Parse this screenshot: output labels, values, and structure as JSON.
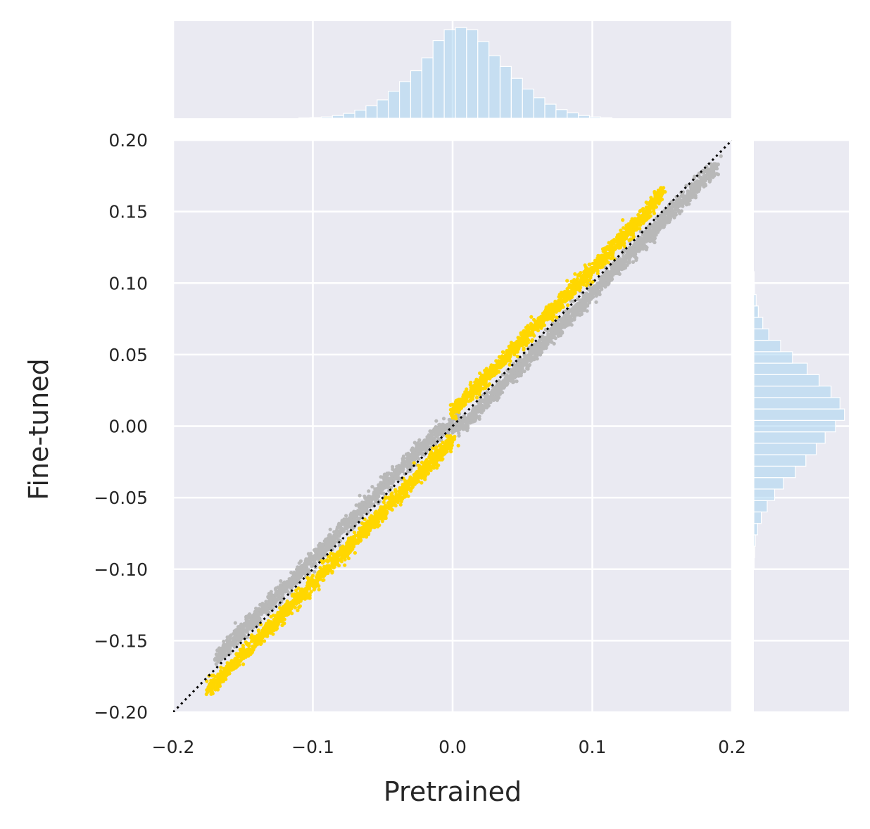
{
  "chart_data": {
    "type": "scatter",
    "subtype": "jointplot",
    "title": "",
    "xlabel": "Pretrained",
    "ylabel": "Fine-tuned",
    "xlim": [
      -0.2,
      0.2
    ],
    "ylim": [
      -0.2,
      0.2
    ],
    "x_ticks": [
      "−0.2",
      "−0.1",
      "0.0",
      "0.1",
      "0.2"
    ],
    "x_tick_values": [
      -0.2,
      -0.1,
      0.0,
      0.1,
      0.2
    ],
    "y_ticks": [
      "−0.20",
      "−0.15",
      "−0.10",
      "−0.05",
      "0.00",
      "0.05",
      "0.10",
      "0.15",
      "0.20"
    ],
    "y_tick_values": [
      -0.2,
      -0.15,
      -0.1,
      -0.05,
      0.0,
      0.05,
      0.1,
      0.15,
      0.2
    ],
    "grid": true,
    "reference_line": {
      "style": "dotted",
      "color": "#000000",
      "from": [
        -0.2,
        -0.2
      ],
      "to": [
        0.2,
        0.2
      ]
    },
    "series": [
      {
        "color": "#b8b8b8",
        "relation": "y ≈ x − 0.007 for x>0, y ≈ x + 0.007 for x<0",
        "points": [
          [
            -0.17,
            -0.163
          ],
          [
            -0.16,
            -0.153
          ],
          [
            -0.15,
            -0.143
          ],
          [
            -0.14,
            -0.133
          ],
          [
            -0.13,
            -0.123
          ],
          [
            -0.12,
            -0.113
          ],
          [
            -0.11,
            -0.103
          ],
          [
            -0.1,
            -0.093
          ],
          [
            -0.09,
            -0.083
          ],
          [
            -0.08,
            -0.073
          ],
          [
            -0.07,
            -0.063
          ],
          [
            -0.06,
            -0.053
          ],
          [
            -0.05,
            -0.043
          ],
          [
            -0.04,
            -0.033
          ],
          [
            -0.03,
            -0.023
          ],
          [
            -0.02,
            -0.013
          ],
          [
            -0.01,
            -0.003
          ],
          [
            0.0,
            0.0
          ],
          [
            0.01,
            0.003
          ],
          [
            0.02,
            0.013
          ],
          [
            0.03,
            0.023
          ],
          [
            0.04,
            0.033
          ],
          [
            0.05,
            0.043
          ],
          [
            0.06,
            0.053
          ],
          [
            0.07,
            0.063
          ],
          [
            0.08,
            0.073
          ],
          [
            0.09,
            0.083
          ],
          [
            0.1,
            0.093
          ],
          [
            0.11,
            0.103
          ],
          [
            0.12,
            0.113
          ],
          [
            0.13,
            0.123
          ],
          [
            0.14,
            0.133
          ],
          [
            0.15,
            0.143
          ],
          [
            0.16,
            0.153
          ],
          [
            0.17,
            0.163
          ],
          [
            0.18,
            0.173
          ],
          [
            0.19,
            0.183
          ]
        ]
      },
      {
        "color": "#ffd700",
        "relation": "y ≈ x + 0.01 for x>0, y ≈ x − 0.01 for x<0",
        "points": [
          [
            -0.175,
            -0.185
          ],
          [
            -0.165,
            -0.175
          ],
          [
            -0.155,
            -0.165
          ],
          [
            -0.14,
            -0.15
          ],
          [
            -0.13,
            -0.14
          ],
          [
            -0.12,
            -0.13
          ],
          [
            -0.11,
            -0.12
          ],
          [
            -0.1,
            -0.11
          ],
          [
            -0.09,
            -0.1
          ],
          [
            -0.08,
            -0.09
          ],
          [
            -0.07,
            -0.08
          ],
          [
            -0.06,
            -0.07
          ],
          [
            -0.05,
            -0.06
          ],
          [
            -0.04,
            -0.05
          ],
          [
            -0.03,
            -0.04
          ],
          [
            -0.02,
            -0.03
          ],
          [
            -0.01,
            -0.02
          ],
          [
            0.0,
            -0.01
          ],
          [
            0.0,
            0.01
          ],
          [
            0.01,
            0.02
          ],
          [
            0.02,
            0.03
          ],
          [
            0.03,
            0.04
          ],
          [
            0.04,
            0.05
          ],
          [
            0.05,
            0.06
          ],
          [
            0.06,
            0.07
          ],
          [
            0.07,
            0.08
          ],
          [
            0.08,
            0.09
          ],
          [
            0.09,
            0.1
          ],
          [
            0.1,
            0.11
          ],
          [
            0.11,
            0.12
          ],
          [
            0.12,
            0.13
          ],
          [
            0.13,
            0.14
          ],
          [
            0.14,
            0.15
          ],
          [
            0.15,
            0.165
          ]
        ]
      }
    ],
    "marginal_x": {
      "color": "#a8d4f0",
      "orientation": "vertical",
      "bin_width": 0.008,
      "bins": [
        [
          -0.11,
          0.003
        ],
        [
          -0.102,
          0.006
        ],
        [
          -0.094,
          0.012
        ],
        [
          -0.086,
          0.025
        ],
        [
          -0.078,
          0.045
        ],
        [
          -0.07,
          0.075
        ],
        [
          -0.062,
          0.115
        ],
        [
          -0.054,
          0.17
        ],
        [
          -0.046,
          0.25
        ],
        [
          -0.038,
          0.34
        ],
        [
          -0.03,
          0.44
        ],
        [
          -0.022,
          0.56
        ],
        [
          -0.014,
          0.72
        ],
        [
          -0.006,
          0.82
        ],
        [
          0.002,
          0.84
        ],
        [
          0.01,
          0.82
        ],
        [
          0.018,
          0.71
        ],
        [
          0.026,
          0.58
        ],
        [
          0.034,
          0.48
        ],
        [
          0.042,
          0.37
        ],
        [
          0.05,
          0.27
        ],
        [
          0.058,
          0.19
        ],
        [
          0.066,
          0.13
        ],
        [
          0.074,
          0.08
        ],
        [
          0.082,
          0.05
        ],
        [
          0.09,
          0.025
        ],
        [
          0.098,
          0.012
        ],
        [
          0.106,
          0.005
        ]
      ]
    },
    "marginal_y": {
      "color": "#a8d4f0",
      "orientation": "horizontal",
      "bin_width": 0.008,
      "bins": [
        [
          -0.1,
          0.002
        ],
        [
          -0.092,
          0.005
        ],
        [
          -0.084,
          0.01
        ],
        [
          -0.076,
          0.025
        ],
        [
          -0.068,
          0.05
        ],
        [
          -0.06,
          0.09
        ],
        [
          -0.052,
          0.14
        ],
        [
          -0.044,
          0.2
        ],
        [
          -0.036,
          0.28
        ],
        [
          -0.028,
          0.35
        ],
        [
          -0.02,
          0.42
        ],
        [
          -0.012,
          0.48
        ],
        [
          -0.004,
          0.55
        ],
        [
          0.004,
          0.61
        ],
        [
          0.012,
          0.58
        ],
        [
          0.02,
          0.52
        ],
        [
          0.028,
          0.44
        ],
        [
          0.036,
          0.36
        ],
        [
          0.044,
          0.26
        ],
        [
          0.052,
          0.18
        ],
        [
          0.06,
          0.1
        ],
        [
          0.068,
          0.06
        ],
        [
          0.076,
          0.03
        ],
        [
          0.084,
          0.015
        ],
        [
          0.092,
          0.006
        ],
        [
          0.1,
          0.002
        ]
      ]
    }
  }
}
